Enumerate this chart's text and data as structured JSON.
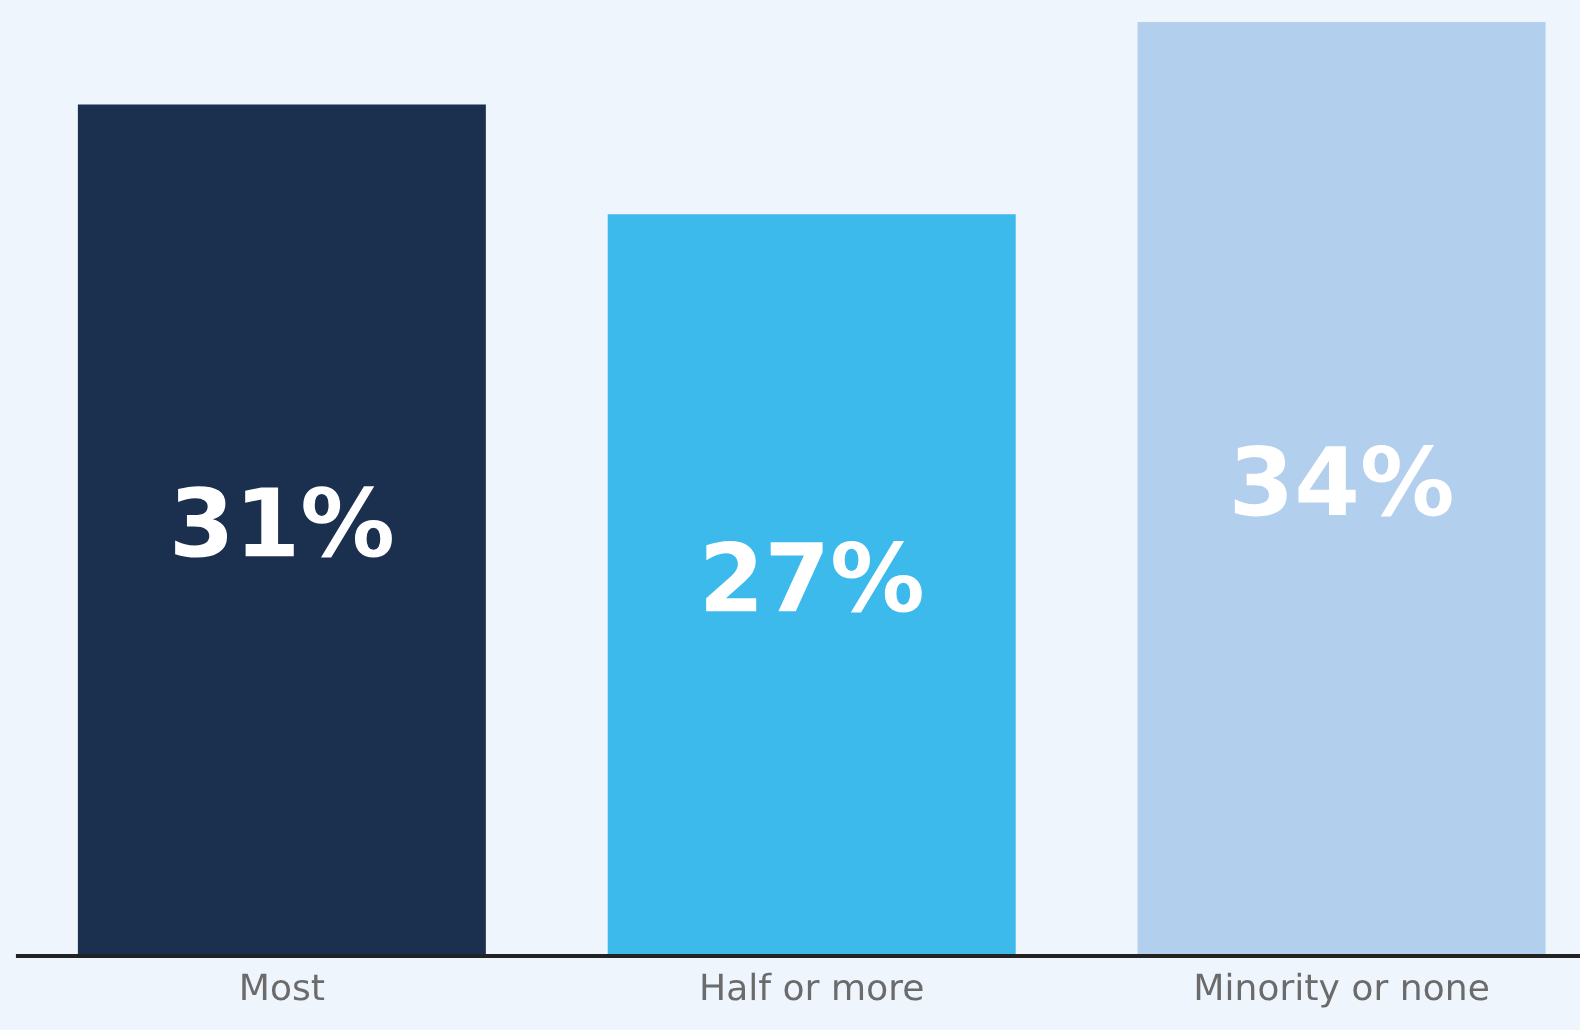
{
  "chart_data": {
    "type": "bar",
    "categories": [
      "Most",
      "Half or more",
      "Minority or none"
    ],
    "values": [
      31,
      27,
      34
    ],
    "colors": [
      "#1b2f4e",
      "#3dbaec",
      "#b3cfee"
    ],
    "value_labels": [
      "31%",
      "27%",
      "34%"
    ],
    "ylim": [
      0,
      34.8
    ],
    "tick_labels": "x",
    "grid": false,
    "legend": false
  }
}
